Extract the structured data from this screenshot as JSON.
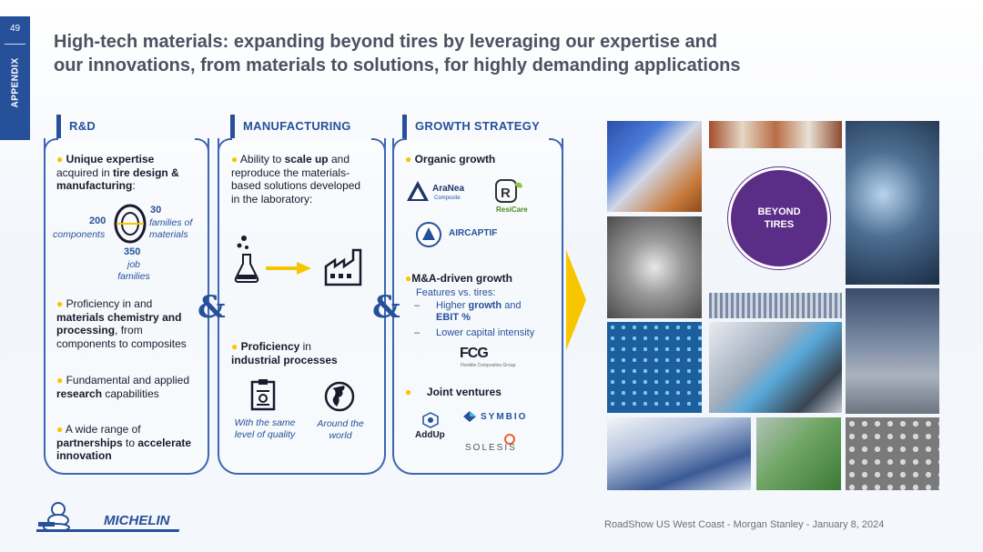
{
  "page": {
    "number": "49",
    "section": "APPENDIX"
  },
  "title": {
    "line1": "High-tech materials: expanding beyond tires by leveraging our expertise and",
    "line2": "our innovations, from materials to solutions, for highly demanding applications"
  },
  "rd": {
    "heading": "R&D",
    "b1": {
      "pre": "Unique expertise",
      "mid": "acquired in ",
      "strong": "tire design & manufacturing",
      "post": ":"
    },
    "stats": {
      "n200": "200",
      "components": "components",
      "n30": "30",
      "families_of": "families of",
      "materials": "materials",
      "n350": "350",
      "job": "job",
      "families": "families"
    },
    "b2": {
      "pre": "Proficiency in and",
      "strong": "materials chemistry and processing",
      "post": ", from components to composites"
    },
    "b3": {
      "pre": "Fundamental and applied ",
      "strong": "research",
      "post": " capabilities"
    },
    "b4": {
      "pre": "A wide range of ",
      "strong": "partnerships",
      "mid": " to ",
      "strong2": "accelerate innovation"
    }
  },
  "mfg": {
    "heading": "MANUFACTURING",
    "b1": {
      "pre": "Ability to ",
      "strong": "scale up",
      "post": " and reproduce the materials-based solutions developed in the laboratory:"
    },
    "b2": {
      "pre": "Proficiency",
      "post": " in",
      "strong": "industrial processes"
    },
    "icon1_label": "With the same level of quality",
    "icon2_label": "Around the world"
  },
  "growth": {
    "heading": "GROWTH STRATEGY",
    "organic": "Organic growth",
    "logos": {
      "aranea": "AraNea",
      "aranea_sub": "Composite",
      "resicare": "ResiCare",
      "aircaptif": "AIRCAPTIF",
      "fcg": "FCG",
      "fcg_sub": "Flexible Composites Group",
      "addup": "AddUp",
      "symbio": "SYMBIO",
      "solesis": "SOLESIS"
    },
    "ma": "M&A-driven growth",
    "features": "Features vs. tires:",
    "f1": {
      "pre": "Higher ",
      "strong": "growth",
      "mid": " and ",
      "strong2": "EBIT %"
    },
    "f2": "Lower capital intensity",
    "jv": "Joint ventures"
  },
  "amp": "&",
  "beyond": {
    "line1": "BEYOND",
    "line2": "TIRES"
  },
  "brand": "MICHELIN",
  "footer": "RoadShow US West Coast - Morgan Stanley - January 8, 2024",
  "colors": {
    "blue": "#27509b",
    "yellow": "#f7c600",
    "purple": "#5a2d86"
  }
}
